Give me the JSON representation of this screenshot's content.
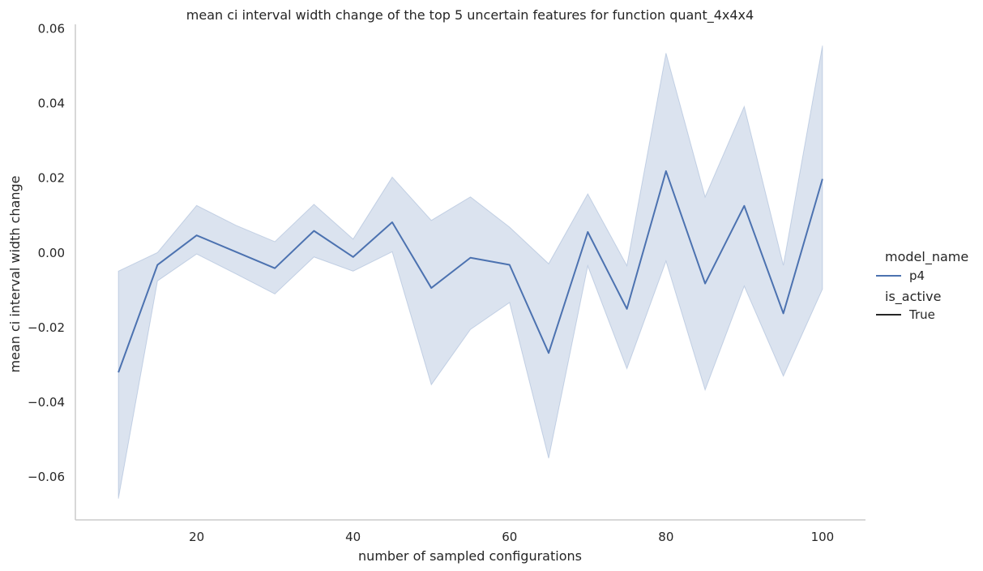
{
  "chart_data": {
    "type": "line",
    "title": "mean ci interval width change of the top 5 uncertain features for function quant_4x4x4",
    "xlabel": "number of sampled configurations",
    "ylabel": "mean ci interval width change",
    "xlim": [
      4.5,
      105.5
    ],
    "ylim": [
      -0.0715,
      0.0612
    ],
    "xticks": [
      20,
      40,
      60,
      80,
      100
    ],
    "xtick_labels": [
      "20",
      "40",
      "60",
      "80",
      "100"
    ],
    "yticks": [
      -0.06,
      -0.04,
      -0.02,
      0.0,
      0.02,
      0.04,
      0.06
    ],
    "ytick_labels": [
      "−0.06",
      "−0.04",
      "−0.02",
      "0.00",
      "0.02",
      "0.04",
      "0.06"
    ],
    "grid": false,
    "legend": {
      "position": "right",
      "hue_title": "model_name",
      "hue_entries": [
        "p4"
      ],
      "style_title": "is_active",
      "style_entries": [
        "True"
      ]
    },
    "series": [
      {
        "name": "p4",
        "color": "#4c72b0",
        "x": [
          10,
          15,
          20,
          25,
          30,
          35,
          40,
          45,
          50,
          55,
          60,
          65,
          70,
          75,
          80,
          85,
          90,
          95,
          100
        ],
        "y": [
          -0.032,
          -0.0032,
          0.0047,
          0.0003,
          -0.0041,
          0.0059,
          -0.0011,
          0.0082,
          -0.0094,
          -0.0013,
          -0.0032,
          -0.0268,
          0.0056,
          -0.015,
          0.0219,
          -0.0082,
          0.0126,
          -0.0162,
          0.0198
        ],
        "ci_lower": [
          -0.0658,
          -0.0075,
          -0.0003,
          -0.0056,
          -0.011,
          -0.0011,
          -0.0049,
          0.0003,
          -0.0353,
          -0.0205,
          -0.0133,
          -0.055,
          -0.0035,
          -0.031,
          -0.0022,
          -0.0367,
          -0.0089,
          -0.033,
          -0.0097
        ],
        "ci_upper": [
          -0.0049,
          0.0001,
          0.0127,
          0.0074,
          0.003,
          0.013,
          0.0037,
          0.0203,
          0.0087,
          0.015,
          0.0069,
          -0.0029,
          0.0158,
          -0.0034,
          0.0535,
          0.015,
          0.0392,
          -0.0033,
          0.0555
        ],
        "ci_color": "#4c72b0",
        "ci_opacity": 0.2
      }
    ],
    "axis_color": "#cccccc",
    "style_line_color": "#262626"
  }
}
